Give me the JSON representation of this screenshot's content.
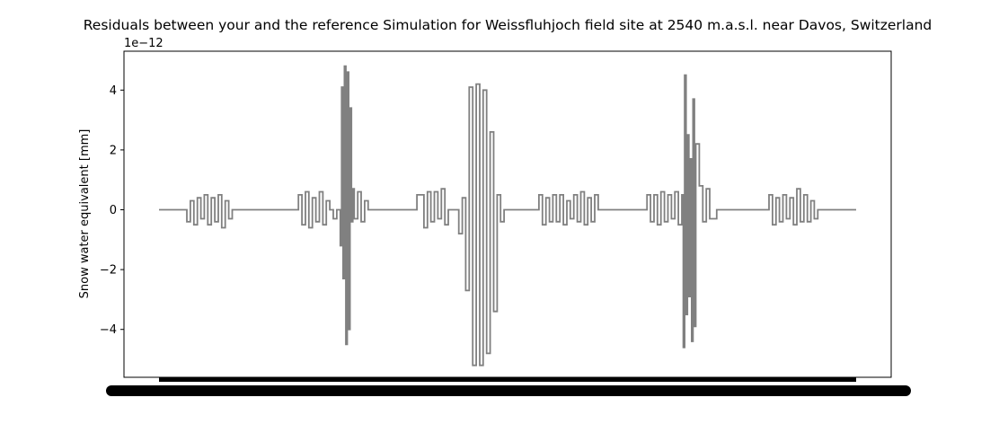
{
  "chart_data": {
    "type": "line",
    "title": "Residuals between your and the reference Simulation for Weissfluhjoch field site at 2540 m.a.s.l. near Davos, Switzerland",
    "ylabel": "Snow water equivalent [mm]",
    "xlabel": "",
    "y_scale_label": "1e−12",
    "yticks": [
      -4,
      -2,
      0,
      2,
      4
    ],
    "ytick_labels": [
      "−4",
      "−2",
      "0",
      "2",
      "4"
    ],
    "ylim": [
      -5.6,
      5.3
    ],
    "xlim": [
      0,
      1
    ],
    "x_tick_labels_note": "x tick labels overlap into an unreadable black band",
    "line_color": "#808080",
    "series": [
      {
        "x": [
          0.0,
          0.03,
          0.035,
          0.04,
          0.045,
          0.05,
          0.055,
          0.06,
          0.065,
          0.07,
          0.075,
          0.08,
          0.085,
          0.09,
          0.095,
          0.1,
          0.105,
          0.11,
          0.115,
          0.12,
          0.13,
          0.17,
          0.19,
          0.2,
          0.205,
          0.21,
          0.215,
          0.22,
          0.225,
          0.23,
          0.235,
          0.24,
          0.245,
          0.25,
          0.255,
          0.26,
          0.262,
          0.264,
          0.266,
          0.268,
          0.27,
          0.272,
          0.274,
          0.276,
          0.278,
          0.28,
          0.285,
          0.29,
          0.295,
          0.3,
          0.31,
          0.35,
          0.36,
          0.37,
          0.38,
          0.385,
          0.39,
          0.395,
          0.4,
          0.405,
          0.41,
          0.415,
          0.42,
          0.425,
          0.43,
          0.435,
          0.44,
          0.445,
          0.45,
          0.455,
          0.46,
          0.465,
          0.47,
          0.475,
          0.48,
          0.485,
          0.49,
          0.495,
          0.5,
          0.52,
          0.54,
          0.545,
          0.55,
          0.555,
          0.56,
          0.565,
          0.57,
          0.575,
          0.58,
          0.585,
          0.59,
          0.595,
          0.6,
          0.605,
          0.61,
          0.615,
          0.62,
          0.625,
          0.63,
          0.66,
          0.68,
          0.69,
          0.7,
          0.705,
          0.71,
          0.715,
          0.72,
          0.725,
          0.73,
          0.735,
          0.74,
          0.745,
          0.75,
          0.752,
          0.754,
          0.756,
          0.758,
          0.76,
          0.762,
          0.764,
          0.766,
          0.768,
          0.77,
          0.775,
          0.78,
          0.785,
          0.79,
          0.8,
          0.87,
          0.875,
          0.88,
          0.885,
          0.89,
          0.895,
          0.9,
          0.905,
          0.91,
          0.915,
          0.92,
          0.925,
          0.93,
          0.935,
          0.94,
          0.945,
          0.95,
          1.0
        ],
        "y": [
          0.0,
          0.0,
          0.0,
          -0.4,
          0.3,
          -0.5,
          0.4,
          -0.3,
          0.5,
          -0.5,
          0.4,
          -0.4,
          0.5,
          -0.6,
          0.3,
          -0.3,
          0.0,
          0.0,
          0.0,
          0.0,
          0.0,
          0.0,
          0.0,
          0.5,
          -0.5,
          0.6,
          -0.6,
          0.4,
          -0.4,
          0.6,
          -0.5,
          0.3,
          0.0,
          -0.3,
          0.0,
          -1.2,
          4.1,
          -2.3,
          4.8,
          -4.5,
          4.6,
          -4.0,
          3.4,
          -0.4,
          0.7,
          -0.3,
          0.6,
          -0.4,
          0.3,
          0.0,
          0.0,
          0.0,
          0.0,
          0.5,
          -0.6,
          0.6,
          -0.4,
          0.6,
          -0.3,
          0.7,
          -0.5,
          0.0,
          0.0,
          0.0,
          -0.8,
          0.4,
          -2.7,
          4.1,
          -5.2,
          4.2,
          -5.2,
          4.0,
          -4.8,
          2.6,
          -3.4,
          0.5,
          -0.4,
          0.0,
          0.0,
          0.0,
          0.0,
          0.5,
          -0.5,
          0.4,
          -0.4,
          0.5,
          -0.4,
          0.5,
          -0.5,
          0.3,
          -0.3,
          0.5,
          -0.4,
          0.6,
          -0.5,
          0.4,
          -0.4,
          0.5,
          0.0,
          0.0,
          0.0,
          0.0,
          0.5,
          -0.4,
          0.5,
          -0.5,
          0.6,
          -0.4,
          0.5,
          -0.3,
          0.6,
          -0.5,
          0.5,
          -4.6,
          4.5,
          -3.5,
          2.5,
          -2.9,
          1.7,
          -4.4,
          3.7,
          -3.9,
          2.2,
          0.8,
          -0.4,
          0.7,
          -0.3,
          0.0,
          0.0,
          0.5,
          -0.5,
          0.4,
          -0.4,
          0.5,
          -0.3,
          0.4,
          -0.5,
          0.7,
          -0.4,
          0.5,
          -0.4,
          0.3,
          -0.3,
          0.0,
          0.0,
          0.0
        ]
      }
    ]
  }
}
